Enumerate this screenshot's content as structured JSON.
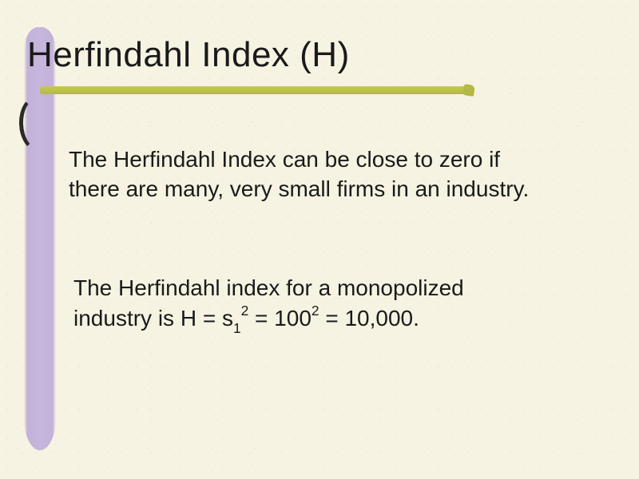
{
  "slide": {
    "background_color": "#f6f3e2",
    "speckle_colors": [
      "rgba(100,100,70,0.18)",
      "rgba(100,100,70,0.12)",
      "rgba(120,120,90,0.10)"
    ],
    "title": "Herfindahl Index (H)",
    "title_fontsize": 44,
    "title_color": "#1a1a1a",
    "underline_color": "#b4b846",
    "ribbon_color": "#c3b2dc",
    "body_fontsize": 28,
    "body_color": "#1a1a1a",
    "paragraph1": "The Herfindahl Index can be close to zero if there are many, very small firms in an industry.",
    "paragraph2_pre": "The Herfindahl index for a monopolized industry is H = s",
    "paragraph2_sub1": "1",
    "paragraph2_sup1": "2",
    "paragraph2_mid": " = 100",
    "paragraph2_sup2": "2",
    "paragraph2_post": " = 10,000."
  }
}
